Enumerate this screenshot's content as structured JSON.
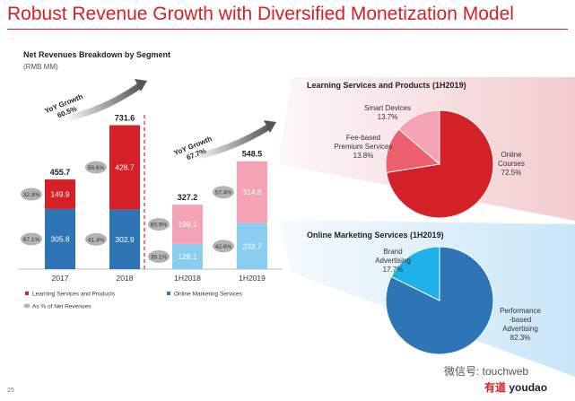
{
  "slide": {
    "title": "Robust Revenue Growth with Diversified Monetization Model",
    "page_number": "25",
    "watermark": "微信号: touchweb",
    "logo_cn": "有道",
    "logo_en": "youdao"
  },
  "colors": {
    "learning": "#d42127",
    "marketing": "#2e75b6",
    "learning_light": "#f4a3b5",
    "marketing_light": "#89cdf1",
    "bubble": "#b3b3b3"
  },
  "chart_data": [
    {
      "type": "bar",
      "title": "Net Revenues Breakdown by Segment",
      "subtitle": "(RMB MM)",
      "categories": [
        "2017",
        "2018",
        "1H2018",
        "1H2019"
      ],
      "series": [
        {
          "name": "Online Marketing Services",
          "values": [
            305.8,
            302.9,
            128.1,
            233.7
          ],
          "pct_labels": [
            "67.1%",
            "41.4%",
            "39.1%",
            "42.6%"
          ]
        },
        {
          "name": "Learning Services and Products",
          "values": [
            149.9,
            428.7,
            199.1,
            314.8
          ],
          "pct_labels": [
            "32.9%",
            "58.6%",
            "60.9%",
            "57.4%"
          ]
        }
      ],
      "totals": [
        "455.7",
        "731.6",
        "327.2",
        "548.5"
      ],
      "ylim": [
        0,
        800
      ],
      "legend": [
        "Learning Services and Products",
        "Online Marketing Services",
        "As % of Net Revenues"
      ],
      "annotations": [
        {
          "text": "YoY Growth 60.5%",
          "line1": "YoY Growth",
          "line2": "60.5%"
        },
        {
          "text": "YoY Growth 67.7%",
          "line1": "YoY Growth",
          "line2": "67.7%"
        }
      ]
    },
    {
      "type": "pie",
      "title": "Learning Services and Products (1H2019)",
      "slices": [
        {
          "label": "Online Courses",
          "value": 72.5,
          "value_label": "72.5%",
          "color": "#d42127"
        },
        {
          "label": "Fee-based Premium Services",
          "value": 13.8,
          "value_label": "13.8%",
          "color": "#ec5f6e"
        },
        {
          "label": "Smart Devices",
          "value": 13.7,
          "value_label": "13.7%",
          "color": "#f4a3b5"
        }
      ]
    },
    {
      "type": "pie",
      "title": "Online Marketing Services (1H2019)",
      "slices": [
        {
          "label": "Performance-based Advertising",
          "value": 82.3,
          "value_label": "82.3%",
          "color": "#2e75b6"
        },
        {
          "label": "Brand Advertising",
          "value": 17.7,
          "value_label": "17.7%",
          "color": "#1fb1e9"
        }
      ]
    }
  ]
}
